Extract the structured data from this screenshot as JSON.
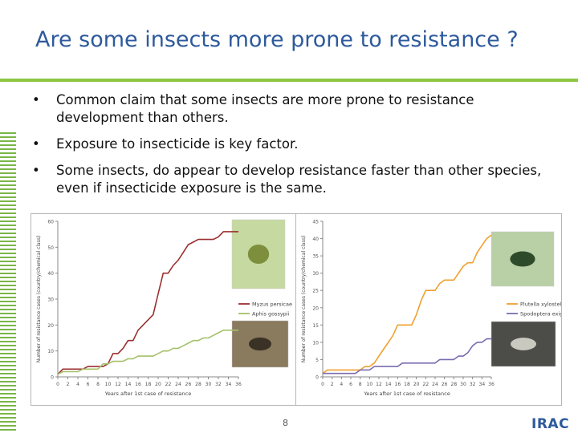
{
  "slide": {
    "title": "Are some insects more prone to resistance ?",
    "bullets": [
      "Common claim that some insects are more prone to resistance development than others.",
      "Exposure to insecticide is key factor.",
      "Some insects, do appear to develop resistance faster than other species, even if insecticide exposure is the same."
    ],
    "page_number": "8",
    "logo_text": "IRAC"
  },
  "colors": {
    "title": "#2e5a9c",
    "accent_green": "#8dc63f",
    "series_dark_red": "#9b2f2f",
    "series_light_green": "#a6c06a",
    "series_orange": "#f0a030",
    "series_purple": "#7b6bb0"
  },
  "chart_data": [
    {
      "type": "line",
      "xlabel": "Years after 1st case of resistance",
      "ylabel": "Number of resistance cases (country/chemical class)",
      "xlim": [
        0,
        36
      ],
      "ylim": [
        0,
        60
      ],
      "x_ticks": [
        0,
        2,
        4,
        6,
        8,
        10,
        12,
        14,
        16,
        18,
        20,
        22,
        24,
        26,
        28,
        30,
        32,
        34,
        36
      ],
      "y_ticks": [
        0,
        10,
        20,
        30,
        40,
        50,
        60
      ],
      "legend_position": "right",
      "series": [
        {
          "name": "Myzus persicae",
          "color": "#9b2f2f",
          "x": [
            0,
            1,
            2,
            3,
            4,
            5,
            6,
            7,
            8,
            9,
            10,
            11,
            12,
            13,
            14,
            15,
            16,
            17,
            18,
            19,
            20,
            21,
            22,
            23,
            24,
            25,
            26,
            27,
            28,
            29,
            30,
            31,
            32,
            33,
            34,
            35,
            36
          ],
          "values": [
            1,
            3,
            3,
            3,
            3,
            3,
            4,
            4,
            4,
            4,
            5,
            9,
            9,
            11,
            14,
            14,
            18,
            20,
            22,
            24,
            32,
            40,
            40,
            43,
            45,
            48,
            51,
            52,
            53,
            53,
            53,
            53,
            54,
            56,
            56,
            56,
            56
          ]
        },
        {
          "name": "Aphis gossypii",
          "color": "#a6c06a",
          "x": [
            0,
            1,
            2,
            3,
            4,
            5,
            6,
            7,
            8,
            9,
            10,
            11,
            12,
            13,
            14,
            15,
            16,
            17,
            18,
            19,
            20,
            21,
            22,
            23,
            24,
            25,
            26,
            27,
            28,
            29,
            30,
            31,
            32,
            33,
            34,
            35,
            36
          ],
          "values": [
            1,
            2,
            2,
            2,
            2,
            3,
            3,
            3,
            3,
            5,
            5,
            6,
            6,
            6,
            7,
            7,
            8,
            8,
            8,
            8,
            9,
            10,
            10,
            11,
            11,
            12,
            13,
            14,
            14,
            15,
            15,
            16,
            17,
            18,
            18,
            18,
            18
          ]
        }
      ]
    },
    {
      "type": "line",
      "xlabel": "Years after 1st case of resistance",
      "ylabel": "Number of resistance cases (country/chemical class)",
      "xlim": [
        0,
        36
      ],
      "ylim": [
        0,
        45
      ],
      "x_ticks": [
        0,
        2,
        4,
        6,
        8,
        10,
        12,
        14,
        16,
        18,
        20,
        22,
        24,
        26,
        28,
        30,
        32,
        34,
        36
      ],
      "y_ticks": [
        0,
        5,
        10,
        15,
        20,
        25,
        30,
        35,
        40,
        45
      ],
      "legend_position": "right",
      "series": [
        {
          "name": "Plutella xylostella",
          "color": "#f0a030",
          "x": [
            0,
            1,
            2,
            3,
            4,
            5,
            6,
            7,
            8,
            9,
            10,
            11,
            12,
            13,
            14,
            15,
            16,
            17,
            18,
            19,
            20,
            21,
            22,
            23,
            24,
            25,
            26,
            27,
            28,
            29,
            30,
            31,
            32,
            33,
            34,
            35,
            36
          ],
          "values": [
            1,
            2,
            2,
            2,
            2,
            2,
            2,
            2,
            2,
            3,
            3,
            4,
            6,
            8,
            10,
            12,
            15,
            15,
            15,
            15,
            18,
            22,
            25,
            25,
            25,
            27,
            28,
            28,
            28,
            30,
            32,
            33,
            33,
            36,
            38,
            40,
            41
          ]
        },
        {
          "name": "Spodoptera exigua",
          "color": "#7b6bb0",
          "x": [
            0,
            1,
            2,
            3,
            4,
            5,
            6,
            7,
            8,
            9,
            10,
            11,
            12,
            13,
            14,
            15,
            16,
            17,
            18,
            19,
            20,
            21,
            22,
            23,
            24,
            25,
            26,
            27,
            28,
            29,
            30,
            31,
            32,
            33,
            34,
            35,
            36
          ],
          "values": [
            1,
            1,
            1,
            1,
            1,
            1,
            1,
            1,
            2,
            2,
            2,
            3,
            3,
            3,
            3,
            3,
            3,
            4,
            4,
            4,
            4,
            4,
            4,
            4,
            4,
            5,
            5,
            5,
            5,
            6,
            6,
            7,
            9,
            10,
            10,
            11,
            11
          ]
        }
      ]
    }
  ]
}
